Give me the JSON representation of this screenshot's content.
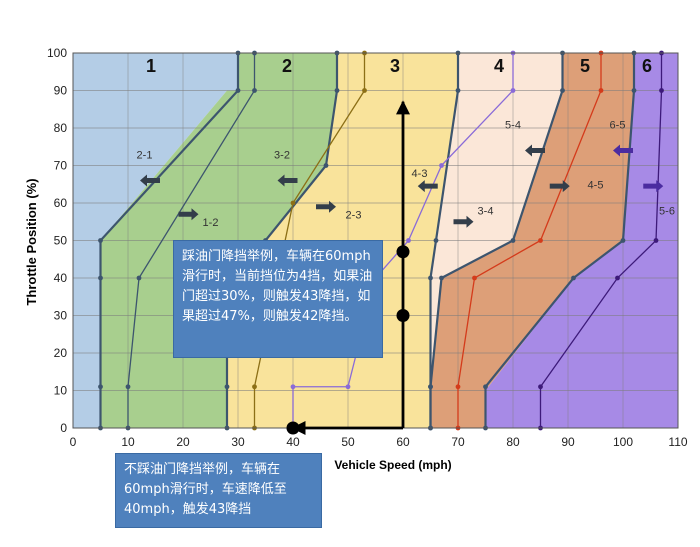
{
  "chart_data": {
    "type": "area",
    "title": "",
    "xlabel": "Vehicle Speed (mph)",
    "ylabel": "Throttle Position (%)",
    "xlim": [
      0,
      110
    ],
    "ylim": [
      0,
      100
    ],
    "x_ticks": [
      0,
      10,
      20,
      30,
      40,
      50,
      60,
      70,
      80,
      90,
      100,
      110
    ],
    "y_ticks": [
      0,
      10,
      20,
      30,
      40,
      50,
      60,
      70,
      80,
      90,
      100
    ],
    "grid": true,
    "colors": {
      "gear1": "#b4cde6",
      "gear2": "#a8cf8e",
      "gear3": "#f9e39b",
      "gear4": "#fbe7d8",
      "gear5": "#dd9f78",
      "gear6": "#a78ae6",
      "upshift_line": "#3d556e",
      "downshift_3_2": "#8c6f16",
      "downshift_4_3": "#8a6bd8",
      "downshift_5_4": "#d43b1b",
      "downshift_6_5": "#3d1a7a",
      "highlight_arrow": "#000000",
      "callout_bg": "#4f81bd"
    },
    "gear_labels": [
      "1",
      "2",
      "3",
      "4",
      "5",
      "6"
    ],
    "region_boundaries": [
      {
        "name": "1-2",
        "x": [
          5,
          5,
          28,
          30,
          30
        ],
        "y": [
          0,
          50,
          90,
          90,
          100
        ]
      },
      {
        "name": "2-3",
        "x": [
          28,
          28,
          28,
          35,
          46,
          48,
          48
        ],
        "y": [
          0,
          10,
          40,
          50,
          70,
          90,
          100
        ]
      },
      {
        "name": "3-4",
        "x": [
          65,
          65,
          65,
          66,
          70,
          70
        ],
        "y": [
          0,
          10,
          40,
          50,
          90,
          100
        ]
      },
      {
        "name": "4-5",
        "x": [
          65,
          65,
          67,
          80,
          89,
          89
        ],
        "y": [
          0,
          10,
          40,
          50,
          90,
          100
        ]
      },
      {
        "name": "5-6",
        "x": [
          75,
          75,
          91,
          100,
          102,
          102
        ],
        "y": [
          0,
          10,
          40,
          50,
          90,
          100
        ]
      }
    ],
    "series": [
      {
        "name": "1-2",
        "line": "upshift",
        "x": [
          5,
          5,
          5,
          5,
          30,
          30
        ],
        "y": [
          0,
          11,
          40,
          50,
          90,
          100
        ]
      },
      {
        "name": "2-1",
        "line": "downshift",
        "x": [
          10,
          10,
          12,
          33,
          33
        ],
        "y": [
          0,
          11,
          40,
          90,
          100
        ]
      },
      {
        "name": "2-3",
        "line": "upshift",
        "x": [
          28,
          28,
          28,
          35,
          46,
          48,
          48
        ],
        "y": [
          0,
          11,
          40,
          50,
          70,
          90,
          100
        ]
      },
      {
        "name": "3-2",
        "line": "downshift",
        "x": [
          33,
          33,
          40,
          53,
          53
        ],
        "y": [
          0,
          11,
          60,
          90,
          100
        ]
      },
      {
        "name": "3-4",
        "line": "upshift",
        "x": [
          65,
          65,
          65,
          66,
          70,
          70
        ],
        "y": [
          0,
          11,
          40,
          50,
          90,
          100
        ]
      },
      {
        "name": "4-3",
        "line": "downshift",
        "x": [
          40,
          40,
          50,
          55,
          61,
          67,
          80,
          80
        ],
        "y": [
          0,
          11,
          11,
          40,
          50,
          70,
          90,
          100
        ]
      },
      {
        "name": "4-5",
        "line": "upshift",
        "x": [
          65,
          65,
          67,
          80,
          89,
          89
        ],
        "y": [
          0,
          11,
          40,
          50,
          90,
          100
        ]
      },
      {
        "name": "5-4",
        "line": "downshift",
        "x": [
          70,
          70,
          73,
          85,
          96,
          96
        ],
        "y": [
          0,
          11,
          40,
          50,
          90,
          100
        ]
      },
      {
        "name": "5-6",
        "line": "upshift",
        "x": [
          75,
          75,
          91,
          100,
          102,
          102
        ],
        "y": [
          0,
          11,
          40,
          50,
          90,
          100
        ]
      },
      {
        "name": "6-5",
        "line": "downshift",
        "x": [
          85,
          85,
          99,
          106,
          107,
          107
        ],
        "y": [
          0,
          11,
          40,
          50,
          90,
          100
        ]
      }
    ],
    "shift_labels": [
      {
        "text": "2-1",
        "x": 13,
        "y": 73,
        "arrow_x": 14,
        "arrow_y": 66,
        "dir": "left"
      },
      {
        "text": "1-2",
        "x": 25,
        "y": 55,
        "arrow_x": 21,
        "arrow_y": 57,
        "dir": "right"
      },
      {
        "text": "3-2",
        "x": 38,
        "y": 73,
        "arrow_x": 39,
        "arrow_y": 66,
        "dir": "left"
      },
      {
        "text": "2-3",
        "x": 51,
        "y": 57,
        "arrow_x": 46,
        "arrow_y": 59,
        "dir": "right"
      },
      {
        "text": "4-3",
        "x": 63,
        "y": 68,
        "arrow_x": 64.5,
        "arrow_y": 64.5,
        "dir": "left"
      },
      {
        "text": "3-4",
        "x": 75,
        "y": 58,
        "arrow_x": 71,
        "arrow_y": 55,
        "dir": "right"
      },
      {
        "text": "5-4",
        "x": 80,
        "y": 81,
        "arrow_x": 84,
        "arrow_y": 74,
        "dir": "left"
      },
      {
        "text": "4-5",
        "x": 95,
        "y": 65,
        "arrow_x": 88.5,
        "arrow_y": 64.5,
        "dir": "right"
      },
      {
        "text": "6-5",
        "x": 99,
        "y": 81,
        "arrow_x": 100,
        "arrow_y": 74,
        "dir": "left"
      },
      {
        "text": "5-6",
        "x": 108,
        "y": 58,
        "arrow_x": 105.5,
        "arrow_y": 64.5,
        "dir": "right"
      }
    ],
    "highlight_markers": [
      {
        "x": 60,
        "y": 47
      },
      {
        "x": 60,
        "y": 30
      },
      {
        "x": 40,
        "y": 0
      }
    ],
    "highlight_arrows": [
      {
        "from": [
          60,
          0
        ],
        "to": [
          60,
          87
        ]
      },
      {
        "from": [
          60,
          0
        ],
        "to": [
          40,
          0
        ]
      }
    ],
    "annotations": [
      "踩油门降挡举例，车辆在60mph滑行时，当前挡位为4挡，如果油门超过30%，则触发43降挡，如果超过47%，则触发42降挡。",
      "不踩油门降挡举例，车辆在60mph滑行时，车速降低至40mph，触发43降挡"
    ]
  }
}
